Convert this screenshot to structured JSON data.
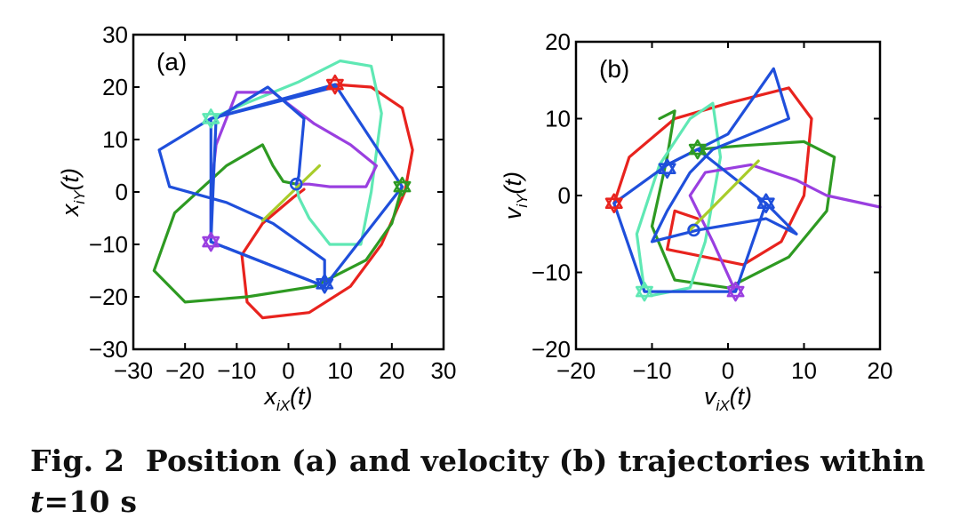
{
  "caption": {
    "label": "Fig. 2",
    "text_line1": "Position (a) and velocity (b) trajectories within",
    "var": "t",
    "rest": "=10 s"
  },
  "chart_data": [
    {
      "type": "line",
      "panel": "(a)",
      "title": "",
      "xlabel_main": "x",
      "xlabel_sub": "iX",
      "xlabel_arg": "(t)",
      "ylabel_main": "x",
      "ylabel_sub": "iY",
      "ylabel_arg": "(t)",
      "xlim": [
        -30,
        30
      ],
      "ylim": [
        -30,
        30
      ],
      "xticks": [
        -30,
        -20,
        -10,
        0,
        10,
        20,
        30
      ],
      "yticks": [
        -30,
        -20,
        -10,
        0,
        10,
        20,
        30
      ],
      "grid": false,
      "series": [
        {
          "name": "red trajectory",
          "color": "#e8231e",
          "points": [
            [
              9,
              20.5
            ],
            [
              16,
              20
            ],
            [
              22,
              16
            ],
            [
              24,
              8
            ],
            [
              22.5,
              0
            ],
            [
              18,
              -10
            ],
            [
              12,
              -18
            ],
            [
              4,
              -23
            ],
            [
              -5,
              -24
            ],
            [
              -8,
              -21
            ],
            [
              -9,
              -12
            ],
            [
              -5,
              -6
            ],
            [
              1,
              -1
            ],
            [
              3,
              0.5
            ]
          ]
        },
        {
          "name": "green trajectory",
          "color": "#2e9a22",
          "points": [
            [
              22,
              1
            ],
            [
              20,
              -6
            ],
            [
              15,
              -13
            ],
            [
              5,
              -18
            ],
            [
              -8,
              -20
            ],
            [
              -20,
              -21
            ],
            [
              -26,
              -15
            ],
            [
              -22,
              -4
            ],
            [
              -12,
              5
            ],
            [
              -5,
              9
            ],
            [
              -3,
              5
            ],
            [
              -1,
              2
            ],
            [
              1.5,
              1.5
            ]
          ]
        },
        {
          "name": "cyan trajectory",
          "color": "#5fe8b4",
          "points": [
            [
              -15,
              14
            ],
            [
              -8,
              17
            ],
            [
              2,
              21
            ],
            [
              10,
              25
            ],
            [
              16,
              24
            ],
            [
              18,
              15
            ],
            [
              16,
              0
            ],
            [
              14,
              -10
            ],
            [
              8,
              -10
            ],
            [
              4,
              -5
            ],
            [
              2,
              -1
            ],
            [
              1.5,
              1.5
            ]
          ]
        },
        {
          "name": "purple trajectory",
          "color": "#9a3fe0",
          "points": [
            [
              -15,
              -9.5
            ],
            [
              -15,
              0
            ],
            [
              -14,
              9
            ],
            [
              -10,
              19
            ],
            [
              -3,
              19
            ],
            [
              5,
              13
            ],
            [
              12,
              9
            ],
            [
              17,
              5
            ],
            [
              15,
              1
            ],
            [
              8,
              1
            ],
            [
              4,
              1.5
            ],
            [
              1.5,
              1.5
            ]
          ]
        },
        {
          "name": "blue trajectory",
          "color": "#1f4fdb",
          "points": [
            [
              9,
              20
            ],
            [
              -15,
              14
            ],
            [
              -25,
              8
            ],
            [
              -23,
              1
            ],
            [
              -12,
              -2
            ],
            [
              -3,
              -6
            ],
            [
              7,
              -13
            ],
            [
              7,
              -18
            ],
            [
              -15,
              -9.5
            ],
            [
              -14,
              14
            ],
            [
              -4,
              20
            ],
            [
              3,
              14
            ],
            [
              2,
              3
            ],
            [
              1.5,
              1.5
            ]
          ]
        },
        {
          "name": "blue polygon",
          "color": "#1f4fdb",
          "points": [
            [
              9,
              20.5
            ],
            [
              22,
              1
            ],
            [
              7,
              -18
            ],
            [
              -15,
              -9.5
            ],
            [
              -15,
              14
            ],
            [
              9,
              20.5
            ]
          ]
        },
        {
          "name": "yellow-green segment",
          "color": "#a8cc2a",
          "points": [
            [
              -5,
              -5.5
            ],
            [
              6,
              5
            ]
          ]
        }
      ],
      "markers": [
        {
          "shape": "hexagram",
          "color": "#e8231e",
          "x": 9,
          "y": 20.5
        },
        {
          "shape": "hexagram",
          "color": "#2e9a22",
          "x": 22,
          "y": 1
        },
        {
          "shape": "hexagram",
          "color": "#1f4fdb",
          "x": 7,
          "y": -17.5
        },
        {
          "shape": "hexagram",
          "color": "#9a3fe0",
          "x": -15,
          "y": -9.5
        },
        {
          "shape": "hexagram",
          "color": "#5fe8b4",
          "x": -15,
          "y": 14
        },
        {
          "shape": "circle",
          "color": "#1f4fdb",
          "x": 1.5,
          "y": 1.5
        }
      ]
    },
    {
      "type": "line",
      "panel": "(b)",
      "title": "",
      "xlabel_main": "v",
      "xlabel_sub": "iX",
      "xlabel_arg": "(t)",
      "ylabel_main": "v",
      "ylabel_sub": "iY",
      "ylabel_arg": "(t)",
      "xlim": [
        -20,
        20
      ],
      "ylim": [
        -20,
        20
      ],
      "xticks": [
        -20,
        -10,
        0,
        10,
        20
      ],
      "yticks": [
        -20,
        -10,
        0,
        10,
        20
      ],
      "grid": false,
      "series": [
        {
          "name": "red trajectory",
          "color": "#e8231e",
          "points": [
            [
              -15,
              -1
            ],
            [
              -13,
              5
            ],
            [
              -7,
              10
            ],
            [
              0,
              12
            ],
            [
              8,
              14
            ],
            [
              11,
              10
            ],
            [
              10,
              0
            ],
            [
              7,
              -6
            ],
            [
              2,
              -9
            ],
            [
              -3,
              -8
            ],
            [
              -8,
              -7
            ],
            [
              -7,
              -2
            ],
            [
              -4,
              -3
            ]
          ]
        },
        {
          "name": "green trajectory",
          "color": "#2e9a22",
          "points": [
            [
              -4,
              6
            ],
            [
              2,
              6.5
            ],
            [
              10,
              7
            ],
            [
              14,
              5
            ],
            [
              13,
              -2
            ],
            [
              8,
              -8
            ],
            [
              0,
              -12
            ],
            [
              -7,
              -11
            ],
            [
              -10,
              -4
            ],
            [
              -8,
              5
            ],
            [
              -7,
              11
            ],
            [
              -9,
              10
            ]
          ]
        },
        {
          "name": "cyan trajectory",
          "color": "#5fe8b4",
          "points": [
            [
              -11,
              -12.5
            ],
            [
              -12,
              -5
            ],
            [
              -9,
              4
            ],
            [
              -5,
              10
            ],
            [
              -2,
              12
            ],
            [
              -1,
              5
            ],
            [
              -3,
              -6
            ],
            [
              -5,
              -12
            ],
            [
              -10,
              -13
            ]
          ]
        },
        {
          "name": "purple trajectory",
          "color": "#9a3fe0",
          "points": [
            [
              1,
              -12.5
            ],
            [
              -2,
              -6
            ],
            [
              -5,
              0
            ],
            [
              -3,
              3
            ],
            [
              3,
              4
            ],
            [
              9,
              2
            ],
            [
              13,
              0
            ],
            [
              20,
              -1.5
            ]
          ]
        },
        {
          "name": "blue trajectory",
          "color": "#1f4fdb",
          "points": [
            [
              -8,
              4
            ],
            [
              0,
              8
            ],
            [
              6,
              16.5
            ],
            [
              8,
              10
            ],
            [
              3,
              8
            ],
            [
              -2,
              6
            ],
            [
              -5,
              3
            ],
            [
              -8,
              -2
            ],
            [
              -10,
              -6
            ],
            [
              -4,
              -4.5
            ],
            [
              5,
              -3
            ],
            [
              9,
              -5
            ],
            [
              5,
              -1
            ]
          ]
        },
        {
          "name": "blue polygon",
          "color": "#1f4fdb",
          "points": [
            [
              -15,
              -1
            ],
            [
              -8,
              4
            ],
            [
              -4,
              6
            ],
            [
              5,
              -1
            ],
            [
              1,
              -12.5
            ],
            [
              -11,
              -12.5
            ],
            [
              -15,
              -1
            ]
          ]
        },
        {
          "name": "yellow-green segment",
          "color": "#a8cc2a",
          "points": [
            [
              -5,
              -4.5
            ],
            [
              4,
              4.5
            ]
          ]
        }
      ],
      "markers": [
        {
          "shape": "hexagram",
          "color": "#e8231e",
          "x": -15,
          "y": -1
        },
        {
          "shape": "hexagram",
          "color": "#2e9a22",
          "x": -4,
          "y": 6
        },
        {
          "shape": "hexagram",
          "color": "#1f4fdb",
          "x": 5,
          "y": -1
        },
        {
          "shape": "hexagram",
          "color": "#9a3fe0",
          "x": 1,
          "y": -12.5
        },
        {
          "shape": "hexagram",
          "color": "#5fe8b4",
          "x": -11,
          "y": -12.5
        },
        {
          "shape": "hexagram",
          "color": "#1f4fdb",
          "x": -8,
          "y": 3.5
        },
        {
          "shape": "circle",
          "color": "#1f4fdb",
          "x": -4.5,
          "y": -4.5
        }
      ]
    }
  ]
}
